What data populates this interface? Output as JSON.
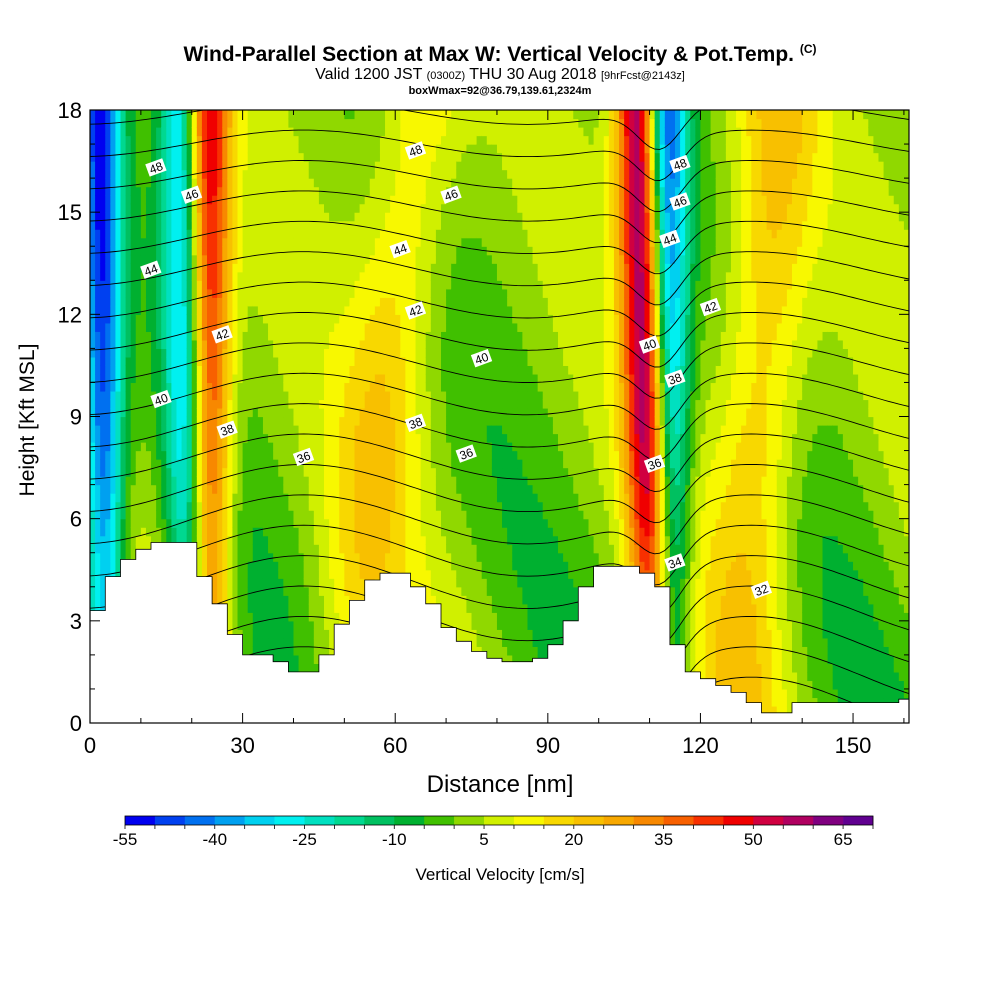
{
  "title": {
    "line1": "Wind-Parallel Section at Max W: Vertical Velocity & Pot.Temp.",
    "copyright": "(C)",
    "line2_a": "Valid 1200 JST",
    "line2_zulu": "(0300Z)",
    "line2_b": "THU 30 Aug 2018",
    "line2_fcst": "[9hrFcst@2143z]",
    "line3": "boxWmax=92@36.79,139.61,2324m"
  },
  "chart_data": {
    "type": "heatmap",
    "xlabel": "Distance [nm]",
    "ylabel": "Height [Kft MSL]",
    "xlim": [
      0,
      161
    ],
    "ylim": [
      0,
      18
    ],
    "xticks": [
      0,
      30,
      60,
      90,
      120,
      150
    ],
    "yticks": [
      0,
      3,
      6,
      9,
      12,
      15,
      18
    ],
    "colorbar": {
      "label": "Vertical Velocity [cm/s]",
      "tick_labels": [
        -55,
        -40,
        -25,
        -10,
        5,
        20,
        35,
        50,
        65
      ],
      "levels": [
        -55,
        -50,
        -45,
        -40,
        -35,
        -30,
        -25,
        -20,
        -15,
        -10,
        -5,
        0,
        5,
        10,
        15,
        20,
        25,
        30,
        35,
        40,
        45,
        50,
        55,
        60,
        65,
        70
      ],
      "colors": [
        "#0000f0",
        "#0040f0",
        "#0070f0",
        "#00a0f0",
        "#00d0f0",
        "#00f0f0",
        "#00e0c0",
        "#00d890",
        "#00c060",
        "#00b030",
        "#40c000",
        "#90d800",
        "#d0f000",
        "#f8f800",
        "#f8d800",
        "#f8c000",
        "#f8a800",
        "#f88800",
        "#f86000",
        "#f83000",
        "#f00000",
        "#d00040",
        "#b00060",
        "#800080",
        "#600090"
      ]
    },
    "theta_contour_labels": [
      "48",
      "46",
      "44",
      "42",
      "40",
      "38",
      "36",
      "34",
      "32"
    ],
    "terrain_profile": {
      "x": [
        0,
        3,
        6,
        9,
        12,
        15,
        18,
        21,
        24,
        27,
        30,
        33,
        36,
        39,
        42,
        45,
        48,
        51,
        54,
        57,
        60,
        63,
        66,
        69,
        72,
        75,
        78,
        81,
        84,
        87,
        90,
        93,
        96,
        99,
        102,
        105,
        108,
        111,
        114,
        117,
        120,
        123,
        126,
        129,
        132,
        135,
        138,
        141,
        144,
        147,
        150,
        153,
        156,
        159,
        161
      ],
      "y": [
        3.3,
        4.3,
        4.8,
        5.1,
        5.3,
        5.3,
        5.3,
        4.3,
        3.5,
        2.6,
        2.0,
        2.0,
        1.8,
        1.5,
        1.5,
        2.0,
        2.9,
        3.6,
        4.2,
        4.4,
        4.4,
        4.0,
        3.5,
        2.8,
        2.4,
        2.1,
        1.9,
        1.8,
        1.8,
        1.9,
        2.3,
        3.0,
        4.0,
        4.6,
        4.6,
        4.6,
        4.4,
        4.0,
        2.3,
        1.5,
        1.3,
        1.1,
        0.9,
        0.6,
        0.3,
        0.3,
        0.6,
        0.6,
        0.6,
        0.6,
        0.6,
        0.6,
        0.6,
        0.7,
        0.7
      ]
    },
    "updraft_axes": [
      {
        "x_bottom": 23,
        "x_top": 23,
        "w_peak": 50
      },
      {
        "x_bottom": 50,
        "x_top": 65,
        "w_peak": 15
      },
      {
        "x_bottom": 112,
        "x_top": 108,
        "w_peak": 65
      },
      {
        "x_bottom": 128,
        "x_top": 135,
        "w_peak": 20
      }
    ],
    "downdraft_axes": [
      {
        "x_bottom": 3,
        "x_top": 2,
        "w_min": -50
      },
      {
        "x_bottom": 20,
        "x_top": 18,
        "w_min": -40
      },
      {
        "x_bottom": 114,
        "x_top": 113,
        "w_min": -55
      }
    ]
  }
}
